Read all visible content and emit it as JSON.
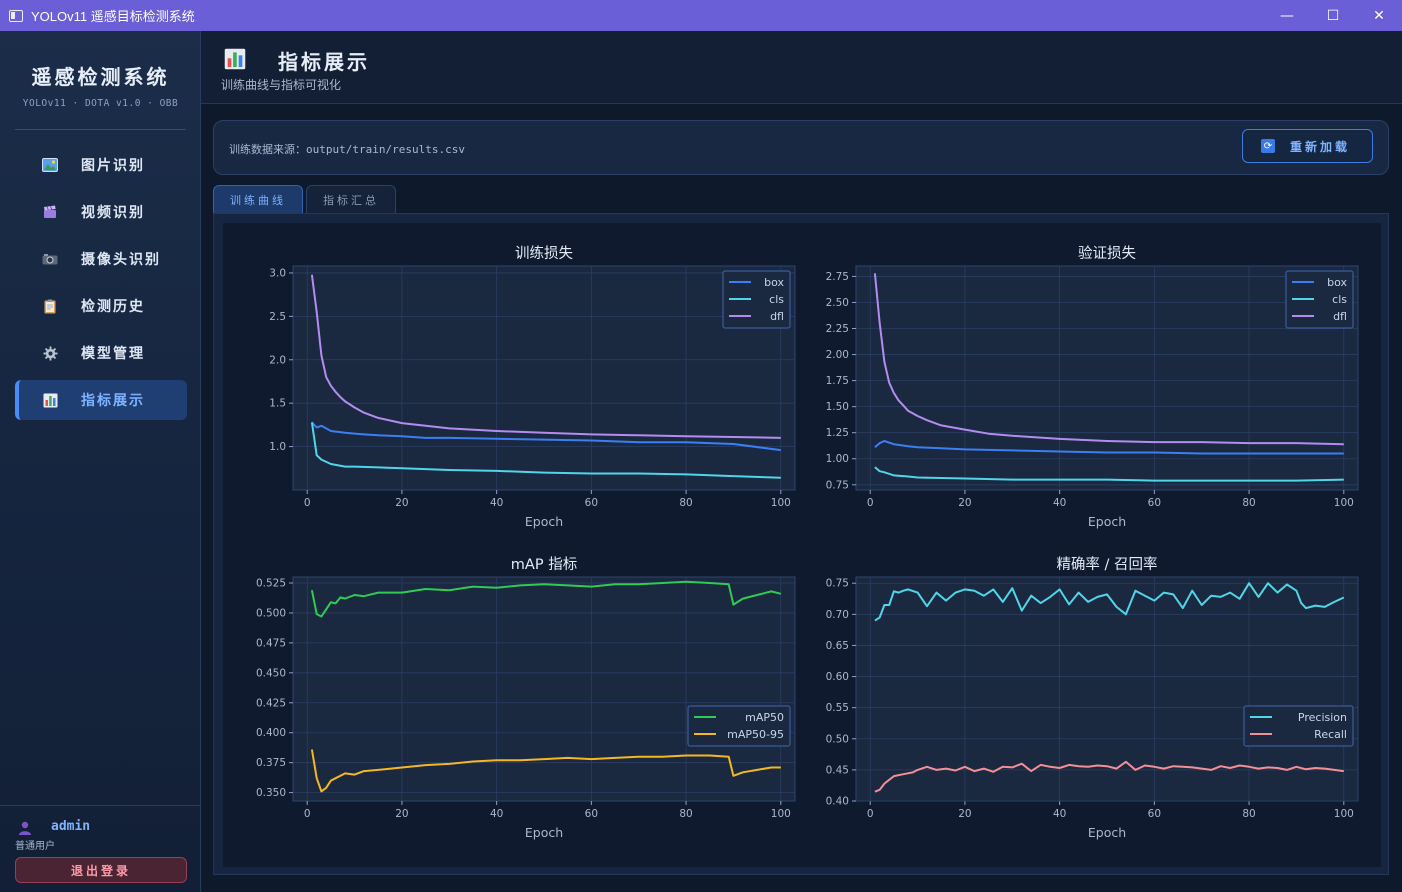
{
  "window": {
    "title": "YOLOv11 遥感目标检测系统",
    "minimize": "—",
    "maximize": "☐",
    "close": "✕"
  },
  "sidebar": {
    "brand_title": "遥感检测系统",
    "brand_sub": "YOLOv11 · DOTA v1.0 · OBB",
    "items": [
      {
        "label": "图片识别",
        "icon": "image-icon"
      },
      {
        "label": "视频识别",
        "icon": "clapper-icon"
      },
      {
        "label": "摄像头识别",
        "icon": "camera-icon"
      },
      {
        "label": "检测历史",
        "icon": "clipboard-icon"
      },
      {
        "label": "模型管理",
        "icon": "gear-icon"
      },
      {
        "label": "指标展示",
        "icon": "bar-chart-icon",
        "active": true
      }
    ],
    "user": {
      "name": "admin",
      "role": "普通用户",
      "logout": "退出登录"
    }
  },
  "header": {
    "title": "指标展示",
    "subtitle": "训练曲线与指标可视化"
  },
  "source": {
    "text": "训练数据来源：output/train/results.csv",
    "reload": "重新加载"
  },
  "tabs": [
    {
      "label": "训练曲线",
      "active": true
    },
    {
      "label": "指标汇总",
      "active": false
    }
  ],
  "colors": {
    "box": "#3b7ff5",
    "cls": "#4fd6e8",
    "dfl": "#b48cf0",
    "map50": "#2ecc55",
    "map5095": "#f5b81f",
    "precision": "#4fd6e8",
    "recall": "#f58f96"
  },
  "chart_data": [
    {
      "type": "line",
      "title": "训练损失",
      "xlabel": "Epoch",
      "xlim": [
        -3,
        103
      ],
      "ylim": [
        0.5,
        3.08
      ],
      "xticks": [
        0,
        20,
        40,
        60,
        80,
        100
      ],
      "yticks": [
        1.0,
        1.5,
        2.0,
        2.5,
        3.0
      ],
      "ytick_labels": [
        "1.0",
        "1.5",
        "2.0",
        "2.5",
        "3.0"
      ],
      "legend": "top-right",
      "grid": true,
      "series": [
        {
          "name": "box",
          "color": "#3b7ff5",
          "x": [
            1,
            2,
            3,
            5,
            8,
            10,
            12,
            15,
            20,
            25,
            30,
            40,
            50,
            60,
            70,
            80,
            90,
            100
          ],
          "y": [
            1.28,
            1.22,
            1.24,
            1.18,
            1.16,
            1.15,
            1.14,
            1.13,
            1.12,
            1.1,
            1.1,
            1.09,
            1.08,
            1.07,
            1.05,
            1.05,
            1.03,
            0.96
          ]
        },
        {
          "name": "cls",
          "color": "#4fd6e8",
          "x": [
            1,
            2,
            3,
            5,
            8,
            10,
            15,
            20,
            30,
            40,
            50,
            60,
            70,
            80,
            90,
            100
          ],
          "y": [
            1.28,
            0.9,
            0.85,
            0.8,
            0.77,
            0.77,
            0.76,
            0.75,
            0.73,
            0.72,
            0.7,
            0.69,
            0.69,
            0.68,
            0.66,
            0.64
          ]
        },
        {
          "name": "dfl",
          "color": "#b48cf0",
          "x": [
            1,
            2,
            3,
            4,
            5,
            6,
            7,
            8,
            10,
            12,
            15,
            20,
            25,
            30,
            40,
            50,
            60,
            70,
            80,
            90,
            100
          ],
          "y": [
            2.98,
            2.55,
            2.05,
            1.8,
            1.7,
            1.63,
            1.57,
            1.52,
            1.45,
            1.39,
            1.33,
            1.27,
            1.24,
            1.21,
            1.18,
            1.16,
            1.14,
            1.13,
            1.12,
            1.11,
            1.1
          ]
        }
      ]
    },
    {
      "type": "line",
      "title": "验证损失",
      "xlabel": "Epoch",
      "xlim": [
        -3,
        103
      ],
      "ylim": [
        0.7,
        2.85
      ],
      "xticks": [
        0,
        20,
        40,
        60,
        80,
        100
      ],
      "yticks": [
        0.75,
        1.0,
        1.25,
        1.5,
        1.75,
        2.0,
        2.25,
        2.5,
        2.75
      ],
      "ytick_labels": [
        "0.75",
        "1.00",
        "1.25",
        "1.50",
        "1.75",
        "2.00",
        "2.25",
        "2.50",
        "2.75"
      ],
      "legend": "top-right",
      "grid": true,
      "series": [
        {
          "name": "box",
          "color": "#3b7ff5",
          "x": [
            1,
            2,
            3,
            5,
            8,
            10,
            15,
            20,
            30,
            40,
            50,
            60,
            70,
            80,
            90,
            100
          ],
          "y": [
            1.11,
            1.15,
            1.17,
            1.14,
            1.12,
            1.11,
            1.1,
            1.09,
            1.08,
            1.07,
            1.06,
            1.06,
            1.05,
            1.05,
            1.05,
            1.05
          ]
        },
        {
          "name": "cls",
          "color": "#4fd6e8",
          "x": [
            1,
            2,
            3,
            5,
            8,
            10,
            20,
            30,
            40,
            50,
            60,
            70,
            80,
            90,
            100
          ],
          "y": [
            0.92,
            0.88,
            0.87,
            0.84,
            0.83,
            0.82,
            0.81,
            0.8,
            0.8,
            0.8,
            0.79,
            0.79,
            0.79,
            0.79,
            0.8
          ]
        },
        {
          "name": "dfl",
          "color": "#b48cf0",
          "x": [
            1,
            2,
            3,
            4,
            5,
            6,
            7,
            8,
            10,
            12,
            15,
            20,
            25,
            30,
            40,
            50,
            60,
            70,
            80,
            90,
            100
          ],
          "y": [
            2.78,
            2.3,
            1.93,
            1.73,
            1.63,
            1.56,
            1.51,
            1.46,
            1.41,
            1.37,
            1.32,
            1.28,
            1.24,
            1.22,
            1.19,
            1.17,
            1.16,
            1.16,
            1.15,
            1.15,
            1.14
          ]
        }
      ]
    },
    {
      "type": "line",
      "title": "mAP 指标",
      "xlabel": "Epoch",
      "xlim": [
        -3,
        103
      ],
      "ylim": [
        0.343,
        0.53
      ],
      "xticks": [
        0,
        20,
        40,
        60,
        80,
        100
      ],
      "yticks": [
        0.35,
        0.375,
        0.4,
        0.425,
        0.45,
        0.475,
        0.5,
        0.525
      ],
      "ytick_labels": [
        "0.350",
        "0.375",
        "0.400",
        "0.425",
        "0.450",
        "0.475",
        "0.500",
        "0.525"
      ],
      "legend": "center-right",
      "grid": true,
      "series": [
        {
          "name": "mAP50",
          "color": "#2ecc55",
          "x": [
            1,
            2,
            3,
            4,
            5,
            6,
            7,
            8,
            10,
            12,
            15,
            20,
            25,
            30,
            35,
            40,
            45,
            50,
            55,
            60,
            65,
            70,
            75,
            80,
            85,
            89,
            90,
            92,
            95,
            98,
            100
          ],
          "y": [
            0.519,
            0.499,
            0.497,
            0.503,
            0.509,
            0.508,
            0.513,
            0.512,
            0.515,
            0.514,
            0.517,
            0.517,
            0.52,
            0.519,
            0.522,
            0.521,
            0.523,
            0.524,
            0.523,
            0.522,
            0.524,
            0.524,
            0.525,
            0.526,
            0.525,
            0.524,
            0.507,
            0.512,
            0.515,
            0.518,
            0.516
          ]
        },
        {
          "name": "mAP50-95",
          "color": "#f5b81f",
          "x": [
            1,
            2,
            3,
            4,
            5,
            6,
            8,
            10,
            12,
            15,
            20,
            25,
            30,
            35,
            40,
            45,
            50,
            55,
            60,
            65,
            70,
            75,
            80,
            85,
            89,
            90,
            92,
            95,
            98,
            100
          ],
          "y": [
            0.386,
            0.362,
            0.351,
            0.354,
            0.36,
            0.362,
            0.366,
            0.365,
            0.368,
            0.369,
            0.371,
            0.373,
            0.374,
            0.376,
            0.377,
            0.377,
            0.378,
            0.379,
            0.378,
            0.379,
            0.38,
            0.38,
            0.381,
            0.381,
            0.38,
            0.364,
            0.367,
            0.369,
            0.371,
            0.371
          ]
        }
      ]
    },
    {
      "type": "line",
      "title": "精确率 / 召回率",
      "xlabel": "Epoch",
      "xlim": [
        -3,
        103
      ],
      "ylim": [
        0.4,
        0.76
      ],
      "xticks": [
        0,
        20,
        40,
        60,
        80,
        100
      ],
      "yticks": [
        0.4,
        0.45,
        0.5,
        0.55,
        0.6,
        0.65,
        0.7,
        0.75
      ],
      "ytick_labels": [
        "0.40",
        "0.45",
        "0.50",
        "0.55",
        "0.60",
        "0.65",
        "0.70",
        "0.75"
      ],
      "legend": "center-right",
      "grid": true,
      "series": [
        {
          "name": "Precision",
          "color": "#4fd6e8",
          "x": [
            1,
            2,
            3,
            4,
            5,
            6,
            7,
            8,
            10,
            12,
            14,
            16,
            18,
            20,
            22,
            24,
            26,
            28,
            30,
            32,
            34,
            36,
            38,
            40,
            42,
            44,
            46,
            48,
            50,
            52,
            54,
            56,
            58,
            60,
            62,
            64,
            66,
            68,
            70,
            72,
            74,
            76,
            78,
            80,
            82,
            84,
            86,
            88,
            90,
            91,
            92,
            94,
            96,
            98,
            100
          ],
          "y": [
            0.69,
            0.695,
            0.715,
            0.715,
            0.737,
            0.735,
            0.738,
            0.74,
            0.735,
            0.713,
            0.735,
            0.722,
            0.735,
            0.74,
            0.738,
            0.73,
            0.74,
            0.72,
            0.742,
            0.706,
            0.73,
            0.718,
            0.728,
            0.74,
            0.716,
            0.735,
            0.72,
            0.728,
            0.732,
            0.712,
            0.7,
            0.738,
            0.73,
            0.722,
            0.735,
            0.732,
            0.71,
            0.738,
            0.715,
            0.73,
            0.728,
            0.735,
            0.725,
            0.75,
            0.728,
            0.75,
            0.735,
            0.748,
            0.738,
            0.718,
            0.71,
            0.714,
            0.712,
            0.72,
            0.727
          ]
        },
        {
          "name": "Recall",
          "color": "#f58f96",
          "x": [
            1,
            2,
            3,
            5,
            7,
            9,
            10,
            12,
            14,
            16,
            18,
            20,
            22,
            24,
            26,
            28,
            30,
            32,
            34,
            36,
            38,
            40,
            42,
            44,
            46,
            48,
            50,
            52,
            54,
            56,
            58,
            60,
            62,
            64,
            66,
            68,
            70,
            72,
            74,
            76,
            78,
            80,
            82,
            84,
            86,
            88,
            90,
            92,
            94,
            96,
            98,
            100
          ],
          "y": [
            0.415,
            0.418,
            0.428,
            0.44,
            0.443,
            0.446,
            0.45,
            0.455,
            0.45,
            0.452,
            0.449,
            0.455,
            0.448,
            0.452,
            0.447,
            0.455,
            0.454,
            0.46,
            0.448,
            0.458,
            0.455,
            0.453,
            0.458,
            0.456,
            0.455,
            0.457,
            0.456,
            0.452,
            0.463,
            0.45,
            0.457,
            0.455,
            0.452,
            0.456,
            0.455,
            0.454,
            0.452,
            0.45,
            0.456,
            0.453,
            0.457,
            0.455,
            0.452,
            0.454,
            0.453,
            0.45,
            0.455,
            0.451,
            0.453,
            0.452,
            0.45,
            0.448
          ]
        }
      ]
    }
  ]
}
